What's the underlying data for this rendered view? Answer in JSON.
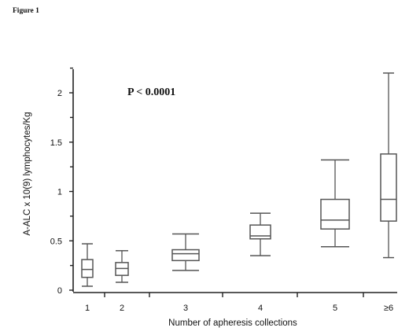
{
  "figure_label": "Figure 1",
  "chart_data": {
    "type": "box",
    "annotation": "P < 0.0001",
    "xlabel": "Number of apheresis collections",
    "ylabel": "A-ALC x 10(9) lymphocytes/Kg",
    "ylim": [
      0,
      2.25
    ],
    "y_ticks": [
      {
        "value": 0,
        "label": "0"
      },
      {
        "value": 0.5,
        "label": "0.5"
      },
      {
        "value": 1,
        "label": "1"
      },
      {
        "value": 1.5,
        "label": "1.5"
      },
      {
        "value": 2,
        "label": "2"
      }
    ],
    "categories": [
      "1",
      "2",
      "3",
      "4",
      "5",
      "≥6"
    ],
    "boxes": [
      {
        "category": "1",
        "min": 0.04,
        "q1": 0.13,
        "median": 0.21,
        "q3": 0.31,
        "max": 0.47
      },
      {
        "category": "2",
        "min": 0.08,
        "q1": 0.15,
        "median": 0.22,
        "q3": 0.28,
        "max": 0.4
      },
      {
        "category": "3",
        "min": 0.2,
        "q1": 0.3,
        "median": 0.37,
        "q3": 0.41,
        "max": 0.57
      },
      {
        "category": "4",
        "min": 0.35,
        "q1": 0.52,
        "median": 0.55,
        "q3": 0.66,
        "max": 0.78
      },
      {
        "category": "5",
        "min": 0.44,
        "q1": 0.62,
        "median": 0.71,
        "q3": 0.92,
        "max": 1.32
      },
      {
        "category": "≥6",
        "min": 0.33,
        "q1": 0.7,
        "median": 0.92,
        "q3": 1.38,
        "max": 2.2
      }
    ],
    "grid": false,
    "color": "#555555"
  }
}
